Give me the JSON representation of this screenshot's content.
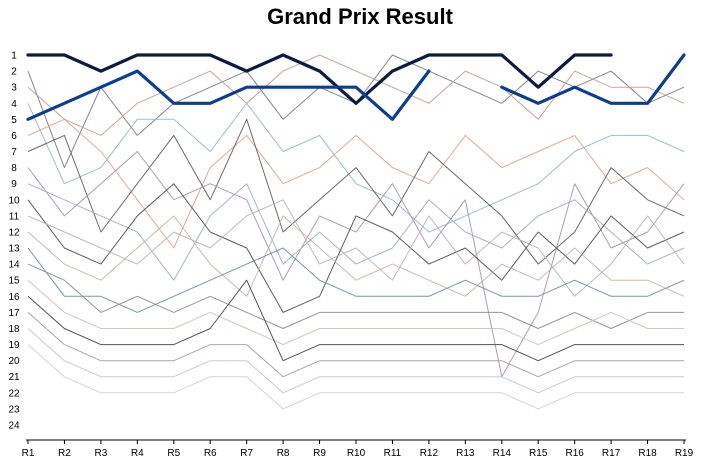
{
  "chart_data": {
    "type": "line",
    "title": "Grand Prix Result",
    "xlabel": "",
    "ylabel": "",
    "x": [
      "R1",
      "R2",
      "R3",
      "R4",
      "R5",
      "R6",
      "R7",
      "R8",
      "R9",
      "R10",
      "R11",
      "R12",
      "R13",
      "R14",
      "R15",
      "R16",
      "R17",
      "R18",
      "R19"
    ],
    "y_ticks": [
      1,
      2,
      3,
      4,
      5,
      6,
      7,
      8,
      9,
      10,
      11,
      12,
      13,
      14,
      15,
      16,
      17,
      18,
      19,
      20,
      21,
      22,
      23,
      24
    ],
    "ylim": [
      1,
      24
    ],
    "y_inverted": true,
    "grid": false,
    "legend": "none",
    "highlight_series": [
      {
        "color": "#0d1b3d",
        "width": 3.2,
        "values": [
          1,
          1,
          2,
          1,
          1,
          1,
          2,
          1,
          2,
          4,
          2,
          1,
          1,
          1,
          3,
          1,
          1,
          null,
          null
        ]
      },
      {
        "color": "#0b3d91",
        "width": 3.2,
        "values": [
          5,
          4,
          3,
          2,
          4,
          4,
          3,
          3,
          3,
          3,
          5,
          2,
          null,
          null,
          null,
          null,
          null,
          null,
          null
        ]
      },
      {
        "color": "#0b3d91",
        "width": 3.2,
        "values": [
          null,
          null,
          null,
          null,
          null,
          null,
          null,
          null,
          null,
          null,
          null,
          null,
          null,
          3,
          4,
          3,
          4,
          4,
          1
        ]
      }
    ],
    "background_series": [
      {
        "color": "#7a7a7a",
        "values": [
          2,
          8,
          3,
          6,
          4,
          3,
          2,
          5,
          3,
          4,
          1,
          2,
          3,
          4,
          2,
          3,
          2,
          4,
          3
        ]
      },
      {
        "color": "#c49a8a",
        "values": [
          3,
          5,
          6,
          4,
          3,
          2,
          4,
          2,
          1,
          2,
          3,
          4,
          2,
          3,
          5,
          2,
          3,
          3,
          4
        ]
      },
      {
        "color": "#8fb8c9",
        "values": [
          4,
          9,
          8,
          5,
          5,
          7,
          4,
          7,
          6,
          9,
          10,
          12,
          11,
          10,
          9,
          7,
          6,
          6,
          7
        ]
      },
      {
        "color": "#d9a586",
        "values": [
          6,
          5,
          7,
          10,
          13,
          8,
          6,
          9,
          8,
          6,
          8,
          9,
          6,
          8,
          7,
          6,
          9,
          8,
          10
        ]
      },
      {
        "color": "#5a5a5a",
        "values": [
          7,
          6,
          12,
          9,
          6,
          10,
          5,
          12,
          10,
          8,
          11,
          7,
          9,
          11,
          14,
          12,
          8,
          10,
          11
        ]
      },
      {
        "color": "#a88fb0",
        "values": [
          8,
          11,
          9,
          7,
          10,
          9,
          10,
          15,
          11,
          12,
          9,
          13,
          10,
          21,
          17,
          9,
          13,
          12,
          9
        ]
      },
      {
        "color": "#9aaec2",
        "values": [
          9,
          10,
          11,
          12,
          15,
          11,
          9,
          14,
          12,
          14,
          13,
          10,
          12,
          13,
          11,
          10,
          12,
          14,
          13
        ]
      },
      {
        "color": "#4a4a4a",
        "values": [
          10,
          13,
          14,
          11,
          9,
          12,
          13,
          17,
          16,
          11,
          12,
          14,
          13,
          15,
          12,
          14,
          11,
          13,
          12
        ]
      },
      {
        "color": "#b5b5b5",
        "values": [
          11,
          12,
          13,
          14,
          12,
          13,
          11,
          10,
          14,
          13,
          15,
          11,
          14,
          12,
          13,
          16,
          14,
          11,
          14
        ]
      },
      {
        "color": "#c9b2a0",
        "values": [
          12,
          14,
          15,
          13,
          11,
          14,
          16,
          11,
          13,
          15,
          14,
          15,
          16,
          14,
          15,
          13,
          15,
          15,
          16
        ]
      },
      {
        "color": "#6b8aa8",
        "values": [
          13,
          16,
          16,
          17,
          16,
          15,
          14,
          13,
          15,
          16,
          16,
          16,
          15,
          16,
          16,
          15,
          16,
          16,
          15
        ]
      },
      {
        "color": "#8a8a8a",
        "values": [
          14,
          15,
          17,
          16,
          17,
          16,
          17,
          18,
          17,
          17,
          17,
          17,
          17,
          17,
          18,
          17,
          18,
          17,
          17
        ]
      },
      {
        "color": "#d4bfb4",
        "values": [
          15,
          17,
          18,
          18,
          18,
          17,
          18,
          19,
          18,
          18,
          18,
          18,
          18,
          18,
          19,
          18,
          17,
          18,
          18
        ]
      },
      {
        "color": "#3f3f3f",
        "values": [
          16,
          18,
          19,
          19,
          19,
          18,
          15,
          20,
          19,
          19,
          19,
          19,
          19,
          19,
          20,
          19,
          19,
          19,
          19
        ]
      },
      {
        "color": "#a0a0a0",
        "values": [
          17,
          19,
          20,
          20,
          20,
          19,
          19,
          21,
          20,
          20,
          20,
          20,
          20,
          20,
          21,
          20,
          20,
          20,
          20
        ]
      },
      {
        "color": "#b8c8d4",
        "values": [
          18,
          20,
          21,
          21,
          21,
          20,
          20,
          22,
          21,
          21,
          21,
          21,
          21,
          21,
          22,
          21,
          21,
          21,
          21
        ]
      },
      {
        "color": "#cfcfcf",
        "values": [
          19,
          21,
          22,
          22,
          22,
          21,
          21,
          23,
          22,
          22,
          22,
          22,
          22,
          22,
          23,
          22,
          22,
          22,
          22
        ]
      }
    ]
  }
}
